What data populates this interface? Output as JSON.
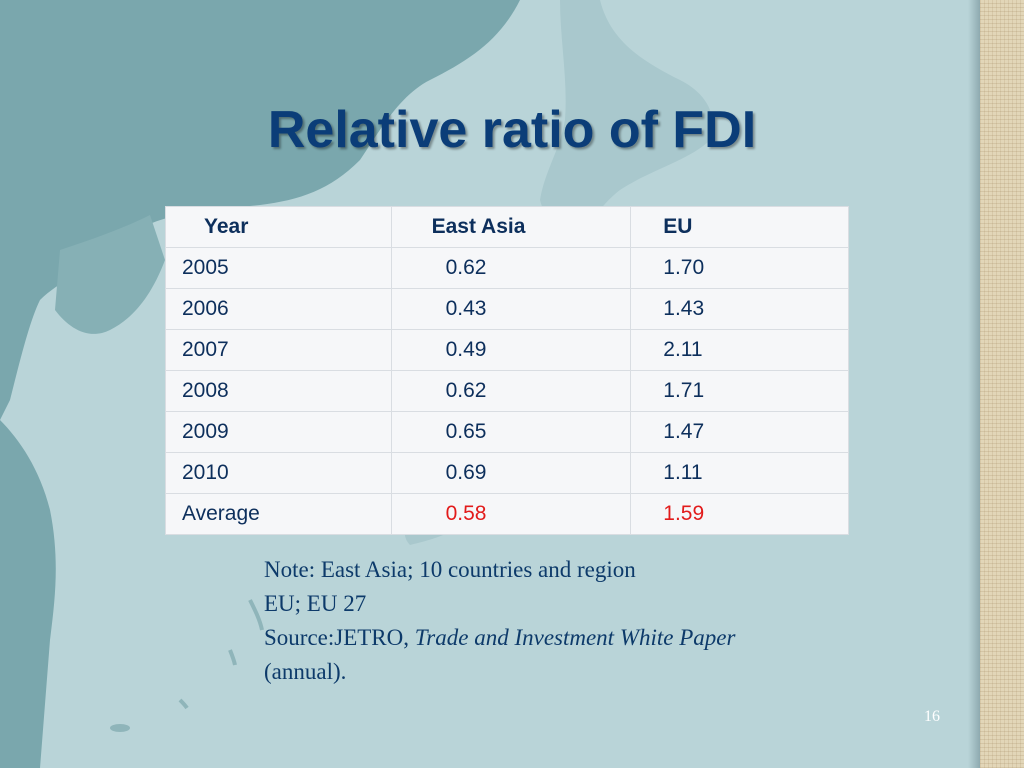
{
  "slide": {
    "title": "Relative ratio of FDI",
    "page_number": "16"
  },
  "table": {
    "headers": [
      "Year",
      "East Asia",
      "EU"
    ],
    "rows": [
      [
        "2005",
        "0.62",
        "1.70"
      ],
      [
        "2006",
        "0.43",
        "1.43"
      ],
      [
        "2007",
        "0.49",
        "2.11"
      ],
      [
        "2008",
        "0.62",
        "1.71"
      ],
      [
        "2009",
        "0.65",
        "1.47"
      ],
      [
        "2010",
        "0.69",
        "1.11"
      ],
      [
        "Average",
        "0.58",
        "1.59"
      ]
    ]
  },
  "note": {
    "line1": "Note: East Asia; 10 countries and region",
    "line2": "EU; EU 27",
    "source_prefix": "Source:JETRO, ",
    "source_title": "Trade and Investment White Paper",
    "source_suffix": " (annual)."
  },
  "colors": {
    "title": "#0b3d78",
    "highlight": "#e21b1b",
    "sea": "#b9d4d8",
    "land": "#7aa7ad"
  }
}
